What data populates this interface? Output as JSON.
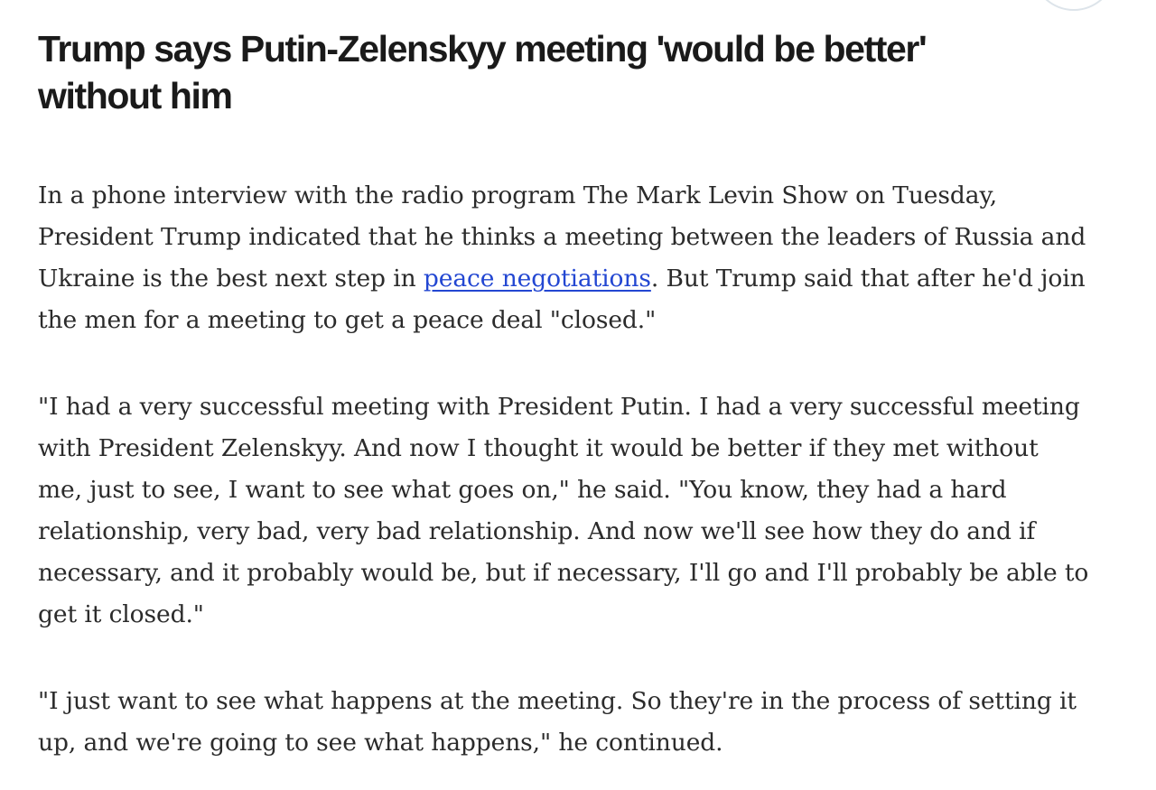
{
  "page": {
    "background_color": "#ffffff",
    "floating_button": {
      "description": "circular button partially visible at top edge",
      "border_color": "#dde4ea"
    }
  },
  "article": {
    "headline": {
      "text": "Trump says Putin-Zelenskyy meeting 'would be better' without him",
      "line1": "Trump says Putin-Zelenskyy meeting 'would be better'",
      "line2": "without him",
      "color": "#1a1a1a"
    },
    "link_color": "#2347d2",
    "body_color": "#2b2b2b",
    "paragraphs": {
      "p1": {
        "before_link": "In a phone interview with the radio program The Mark Levin Show on Tuesday, President Trump indicated that he thinks a meeting between the leaders of Russia and Ukraine is the best next step in ",
        "link_text": "peace negotiations",
        "after_link": ". But Trump said that after he'd join the men for a meeting to get a peace deal \"closed.\""
      },
      "p2": {
        "text": "\"I had a very successful meeting with President Putin. I had a very successful meeting with President Zelenskyy. And now I thought it would be better if they met without me, just to see, I want to see what goes on,\" he said. \"You know, they had a hard relationship, very bad, very bad relationship. And now we'll see how they do and if necessary, and it probably would be, but if necessary, I'll go and I'll probably be able to get it closed.\""
      },
      "p3": {
        "text": "\"I just want to see what happens at the meeting. So they're in the process of setting it up, and we're going to see what happens,\" he continued."
      }
    }
  }
}
